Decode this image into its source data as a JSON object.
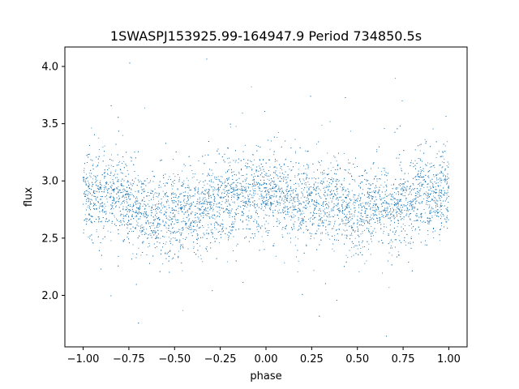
{
  "chart_data": {
    "type": "scatter",
    "title": "1SWASPJ153925.99-164947.9 Period 734850.5s",
    "xlabel": "phase",
    "ylabel": "flux",
    "xlim": [
      -1.1,
      1.1
    ],
    "ylim": [
      1.55,
      4.17
    ],
    "x_ticks": [
      -1.0,
      -0.75,
      -0.5,
      -0.25,
      0.0,
      0.25,
      0.5,
      0.75,
      1.0
    ],
    "x_tick_labels": [
      "−1.00",
      "−0.75",
      "−0.50",
      "−0.25",
      "0.00",
      "0.25",
      "0.50",
      "0.75",
      "1.00"
    ],
    "y_ticks": [
      2.0,
      2.5,
      3.0,
      3.5,
      4.0
    ],
    "y_tick_labels": [
      "2.0",
      "2.5",
      "3.0",
      "3.5",
      "4.0"
    ],
    "grid": false,
    "marker_color": "#1f77b4",
    "phase_range": [
      -1.0,
      1.0
    ],
    "series": [
      {
        "profile_phase": [
          -1.0,
          -0.9,
          -0.8,
          -0.7,
          -0.6,
          -0.5,
          -0.4,
          -0.3,
          -0.2,
          -0.1,
          0.0,
          0.1,
          0.2,
          0.3,
          0.4,
          0.5,
          0.6,
          0.7,
          0.8,
          0.9,
          1.0
        ],
        "profile_flux": [
          2.9,
          2.85,
          2.88,
          2.75,
          2.72,
          2.7,
          2.73,
          2.78,
          2.87,
          2.85,
          2.92,
          2.85,
          2.8,
          2.83,
          2.8,
          2.72,
          2.82,
          2.72,
          2.88,
          2.85,
          2.92
        ],
        "scatter_sigma": 0.18,
        "point_count": 9000
      }
    ]
  }
}
